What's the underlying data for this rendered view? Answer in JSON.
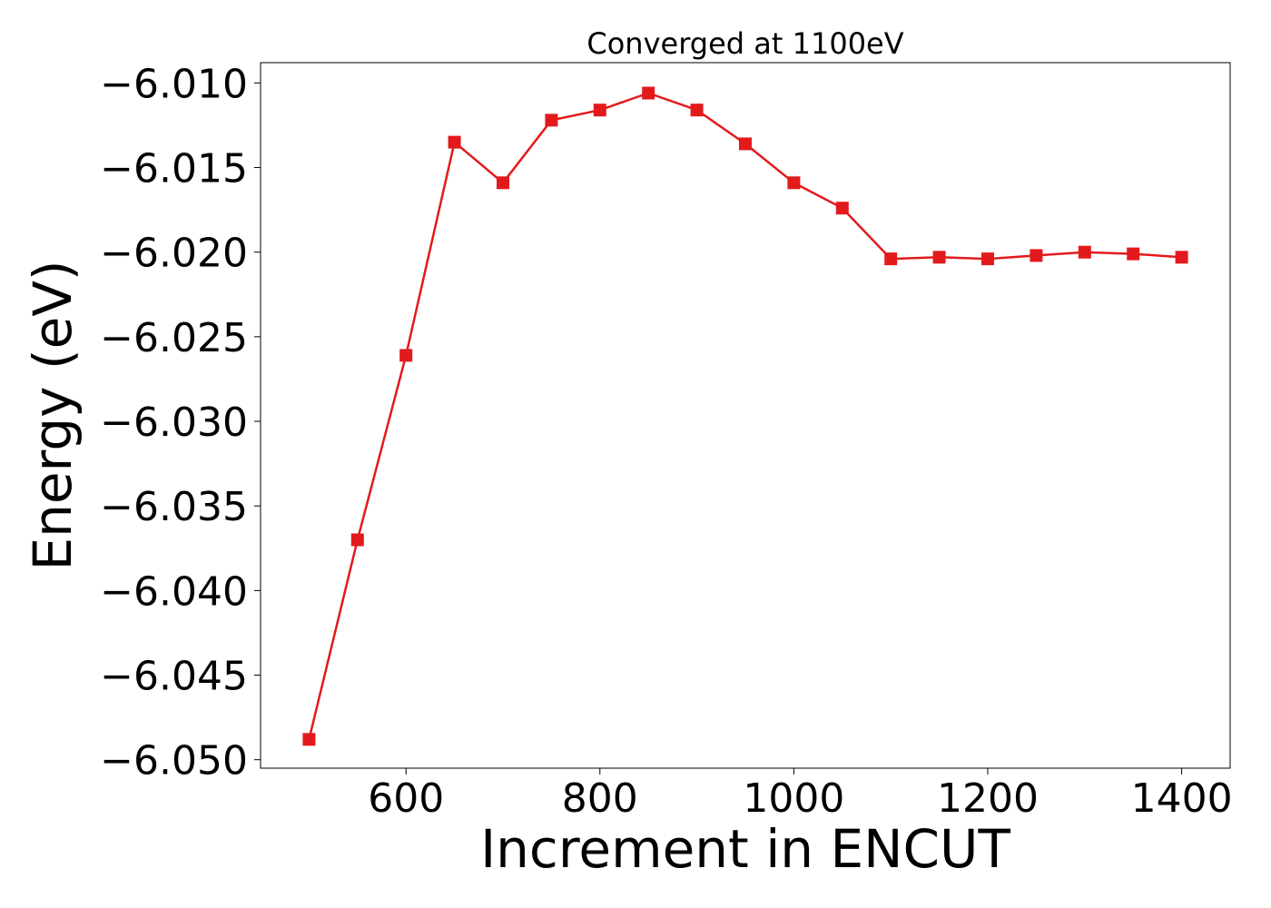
{
  "chart_data": {
    "type": "line",
    "title": "Converged at 1100eV",
    "xlabel": "Increment in ENCUT",
    "ylabel": "Energy (eV)",
    "xlim": [
      450,
      1450
    ],
    "ylim": [
      -6.0505,
      -6.0088
    ],
    "x_ticks": [
      600,
      800,
      1000,
      1200,
      1400
    ],
    "x_tick_labels": [
      "600",
      "800",
      "1000",
      "1200",
      "1400"
    ],
    "y_ticks": [
      -6.01,
      -6.015,
      -6.02,
      -6.025,
      -6.03,
      -6.035,
      -6.04,
      -6.045,
      -6.05
    ],
    "y_tick_labels": [
      "−6.010",
      "−6.015",
      "−6.020",
      "−6.025",
      "−6.030",
      "−6.035",
      "−6.040",
      "−6.045",
      "−6.050"
    ],
    "grid": false,
    "series": [
      {
        "color": "#e31a1c",
        "marker": "square",
        "x": [
          500,
          550,
          600,
          650,
          700,
          750,
          800,
          850,
          900,
          950,
          1000,
          1050,
          1100,
          1150,
          1200,
          1250,
          1300,
          1350,
          1400
        ],
        "y": [
          -6.0488,
          -6.037,
          -6.0261,
          -6.0135,
          -6.0159,
          -6.0122,
          -6.0116,
          -6.0106,
          -6.0116,
          -6.0136,
          -6.0159,
          -6.0174,
          -6.0204,
          -6.0203,
          -6.0204,
          -6.0202,
          -6.02,
          -6.0201,
          -6.0203
        ]
      }
    ]
  }
}
